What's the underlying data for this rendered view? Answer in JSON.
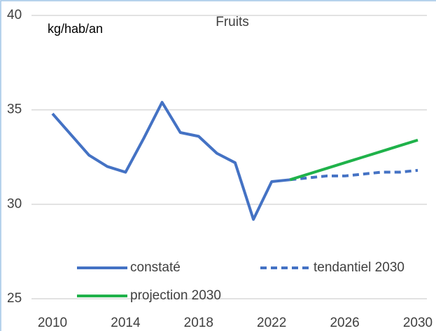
{
  "chart_data": {
    "type": "line",
    "title": "Fruits",
    "y_label": "kg/hab/an",
    "xlim": [
      2010,
      2030
    ],
    "xticks": [
      2010,
      2014,
      2018,
      2022,
      2026,
      2030
    ],
    "ylim": [
      25,
      40
    ],
    "yticks": [
      25,
      30,
      35,
      40
    ],
    "grid": true,
    "series": [
      {
        "name": "constaté",
        "color": "#4472c4",
        "dash": false,
        "x": [
          2010,
          2011,
          2012,
          2013,
          2014,
          2015,
          2016,
          2017,
          2018,
          2019,
          2020,
          2021,
          2022,
          2023
        ],
        "values": [
          34.8,
          33.7,
          32.6,
          32.0,
          31.7,
          33.5,
          35.4,
          33.8,
          33.6,
          32.7,
          32.2,
          29.2,
          31.2,
          31.3
        ]
      },
      {
        "name": "tendantiel 2030",
        "color": "#4472c4",
        "dash": true,
        "x": [
          2023,
          2024,
          2025,
          2026,
          2027,
          2028,
          2029,
          2030
        ],
        "values": [
          31.3,
          31.4,
          31.5,
          31.5,
          31.6,
          31.7,
          31.7,
          31.8
        ]
      },
      {
        "name": "projection 2030",
        "color": "#1fb24a",
        "dash": false,
        "x": [
          2023,
          2024,
          2025,
          2026,
          2027,
          2028,
          2029,
          2030
        ],
        "values": [
          31.3,
          31.6,
          31.9,
          32.2,
          32.5,
          32.8,
          33.1,
          33.4
        ]
      }
    ]
  }
}
